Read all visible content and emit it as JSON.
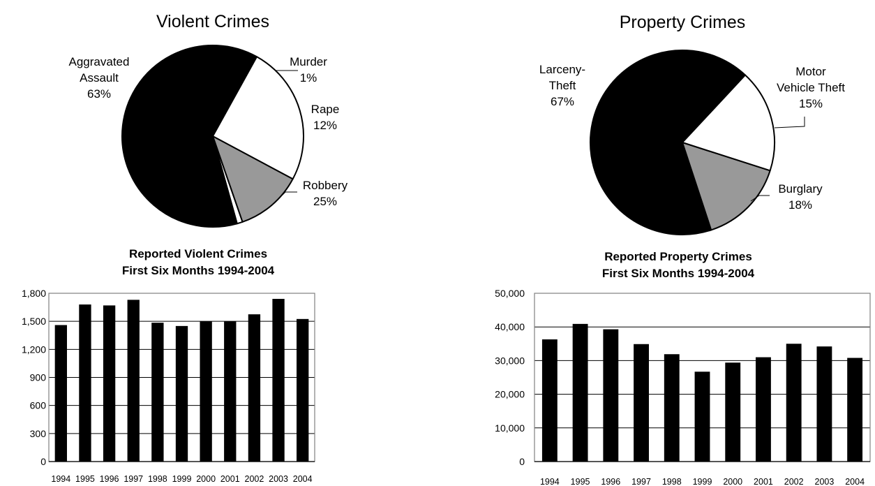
{
  "chart_data": [
    {
      "type": "pie",
      "title": "Violent Crimes",
      "slices": [
        {
          "label_lines": [
            "Aggravated",
            "Assault",
            "63%"
          ],
          "value": 63,
          "color": "#000000"
        },
        {
          "label_lines": [
            "Murder",
            "1%"
          ],
          "value": 1,
          "color": "#ffffff"
        },
        {
          "label_lines": [
            "Rape",
            "12%"
          ],
          "value": 12,
          "color": "#999999"
        },
        {
          "label_lines": [
            "Robbery",
            "25%"
          ],
          "value": 25,
          "color": "#ffffff"
        }
      ]
    },
    {
      "type": "pie",
      "title": "Property Crimes",
      "slices": [
        {
          "label_lines": [
            "Larceny-",
            "Theft",
            "67%"
          ],
          "value": 67,
          "color": "#000000"
        },
        {
          "label_lines": [
            "Motor",
            "Vehicle Theft",
            "15%"
          ],
          "value": 15,
          "color": "#999999"
        },
        {
          "label_lines": [
            "Burglary",
            "18%"
          ],
          "value": 18,
          "color": "#ffffff"
        }
      ]
    },
    {
      "type": "bar",
      "title_lines": [
        "Reported Violent Crimes",
        "First Six Months 1994-2004"
      ],
      "categories": [
        "1994",
        "1995",
        "1996",
        "1997",
        "1998",
        "1999",
        "2000",
        "2001",
        "2002",
        "2003",
        "2004"
      ],
      "values": [
        1460,
        1680,
        1670,
        1730,
        1485,
        1450,
        1500,
        1500,
        1575,
        1740,
        1525
      ],
      "ylim": [
        0,
        1800
      ],
      "yticks": [
        0,
        300,
        600,
        900,
        1200,
        1500,
        1800
      ],
      "ytick_labels": [
        "0",
        "300",
        "600",
        "900",
        "1,200",
        "1,500",
        "1,800"
      ],
      "grid": true,
      "bar_color": "#000000"
    },
    {
      "type": "bar",
      "title_lines": [
        "Reported Property Crimes",
        "First Six Months 1994-2004"
      ],
      "categories": [
        "1994",
        "1995",
        "1996",
        "1997",
        "1998",
        "1999",
        "2000",
        "2001",
        "2002",
        "2003",
        "2004"
      ],
      "values": [
        36300,
        40900,
        39300,
        34900,
        31900,
        26700,
        29400,
        31000,
        35000,
        34200,
        30800
      ],
      "ylim": [
        0,
        50000
      ],
      "yticks": [
        0,
        10000,
        20000,
        30000,
        40000,
        50000
      ],
      "ytick_labels": [
        "0",
        "10,000",
        "20,000",
        "30,000",
        "40,000",
        "50,000"
      ],
      "grid": true,
      "bar_color": "#000000"
    }
  ]
}
